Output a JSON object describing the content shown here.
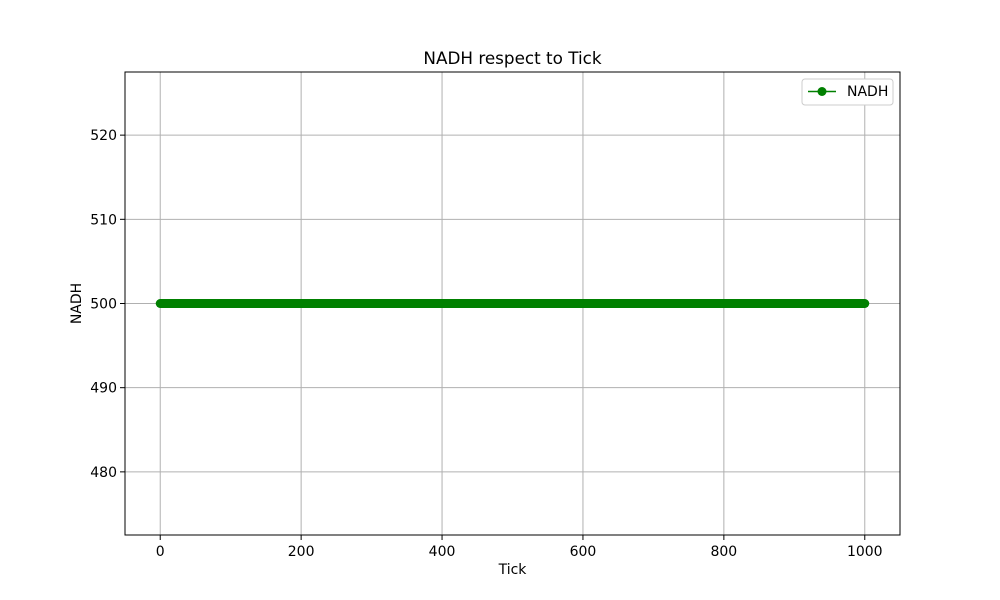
{
  "chart_data": {
    "type": "line",
    "title": "NADH respect to Tick",
    "xlabel": "Tick",
    "ylabel": "NADH",
    "xlim": [
      -50,
      1050
    ],
    "ylim": [
      472.5,
      527.5
    ],
    "xticks": [
      0,
      200,
      400,
      600,
      800,
      1000
    ],
    "yticks": [
      480,
      490,
      500,
      510,
      520
    ],
    "grid": true,
    "legend_position": "top-right",
    "series": [
      {
        "name": "NADH",
        "color": "#008000",
        "marker": "circle",
        "x_start": 0,
        "x_end": 1000,
        "x_step": 1,
        "y_constant": 500
      }
    ]
  }
}
